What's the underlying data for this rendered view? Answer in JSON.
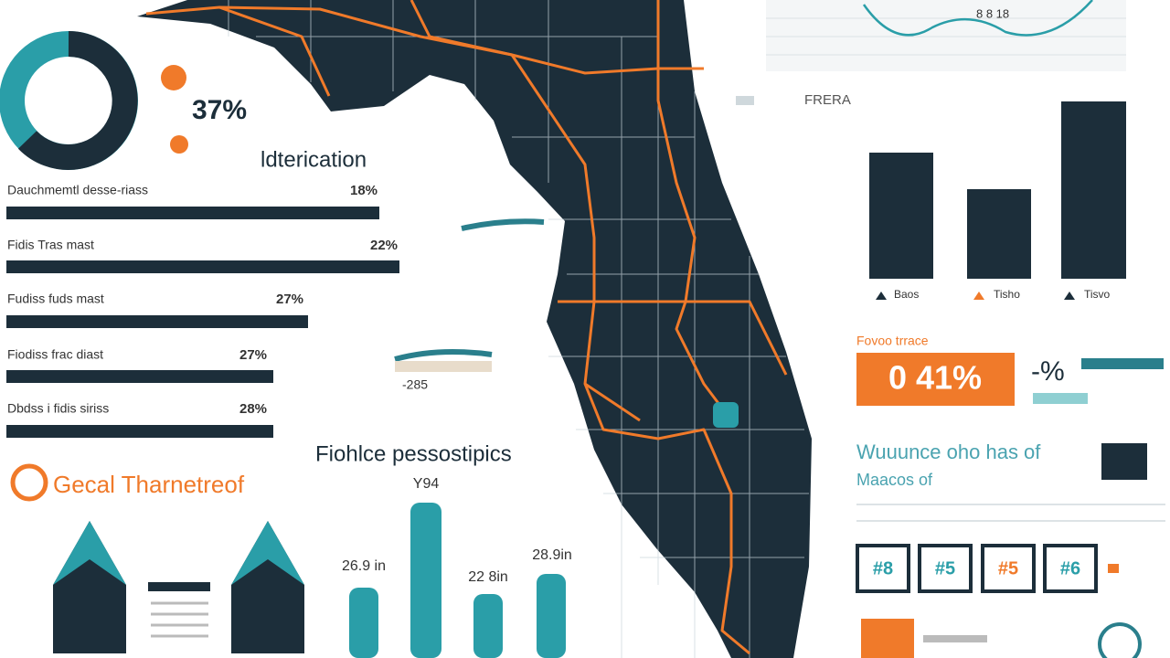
{
  "donut": {
    "value": "37%"
  },
  "identification": {
    "title": "ldterication",
    "rows": [
      {
        "label": "Dauchmemtl desse-riass",
        "value": "18%"
      },
      {
        "label": "Fidis Tras mast",
        "value": "22%"
      },
      {
        "label": "Fudiss fuds mast",
        "value": "27%"
      },
      {
        "label": "Fiodiss frac diast",
        "value": "27%"
      },
      {
        "label": "Dbdss i fidis siriss",
        "value": "28%"
      }
    ]
  },
  "thematic": {
    "title": "Gecal Tharnetreof"
  },
  "pessostipics": {
    "title": "Fiohlce pessostipics",
    "labels": [
      "26.9 in",
      "Y94",
      "22 8in",
      "28.9in"
    ]
  },
  "map_label": "-285",
  "top_chart": {
    "label": "8 8 18"
  },
  "bar_panel": {
    "title": "FRERA",
    "labels": [
      "Baos",
      "Tisho",
      "Tisvo"
    ]
  },
  "stat": {
    "caption": "Fovoo trrace",
    "value": "0 41%",
    "side": "-%"
  },
  "note": {
    "lines": [
      "Wuuunce oho has of",
      "Maacos of"
    ]
  },
  "badges": [
    "#8",
    "#5",
    "#5",
    "#6"
  ]
}
